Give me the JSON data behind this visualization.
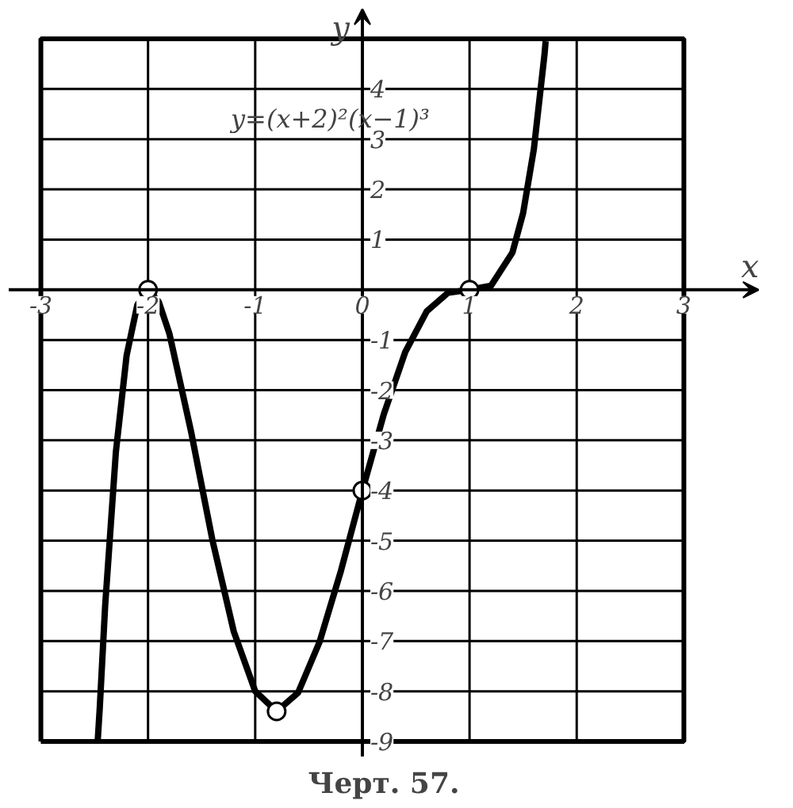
{
  "chart_data": {
    "type": "line",
    "xlabel": "x",
    "ylabel": "y",
    "xlim": [
      -3.3,
      3.7
    ],
    "ylim": [
      -9.3,
      5.6
    ],
    "xticks": [
      -3,
      -2,
      -1,
      0,
      1,
      2,
      3
    ],
    "yticks": [
      -9,
      -8,
      -7,
      -6,
      -5,
      -4,
      -3,
      -2,
      -1,
      1,
      2,
      3,
      4,
      {
        "value": 5,
        "label": null
      }
    ],
    "grid": true,
    "series": [
      {
        "color": "#000000",
        "marker": "none",
        "x": [
          -2.47,
          -2.45,
          -2.4,
          -2.3,
          -2.2,
          -2.1,
          -2,
          -1.9,
          -1.8,
          -1.6,
          -1.4,
          -1.2,
          -1,
          -0.8,
          -0.6,
          -0.4,
          -0.2,
          0,
          0.2,
          0.4,
          0.6,
          0.8,
          1,
          1.2,
          1.4,
          1.5,
          1.6,
          1.7,
          1.71
        ],
        "values": [
          -9,
          -8.31,
          -6.29,
          -3.23,
          -1.31,
          -0.3,
          0,
          -0.24,
          -0.88,
          -2.81,
          -4.98,
          -6.81,
          -8,
          -8.4,
          -8.03,
          -7.02,
          -5.6,
          -4,
          -2.48,
          -1.24,
          -0.43,
          -0.06,
          0,
          0.08,
          0.74,
          1.53,
          2.8,
          4.7,
          4.95
        ]
      },
      {
        "type": "scatter",
        "color": "#ffffff",
        "marker": "circle",
        "x": [
          -2,
          -0.8,
          0,
          1
        ],
        "values": [
          0,
          -8.4,
          -4,
          0
        ]
      }
    ],
    "annotations": [
      "y=(x+2)²(x−1)³",
      "Черт. 57."
    ]
  }
}
